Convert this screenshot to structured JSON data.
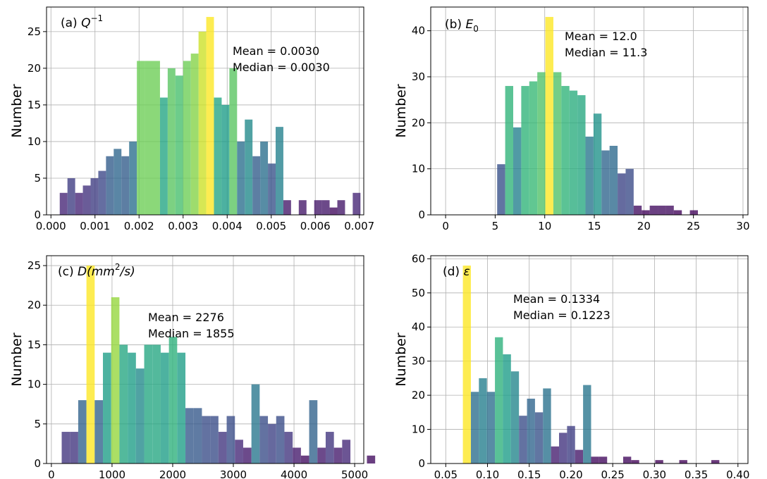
{
  "figure": {
    "ylabel": "Number"
  },
  "chart_data": [
    {
      "type": "bar",
      "panel": "a",
      "title_prefix": "(a) ",
      "title_var": "Q",
      "title_sup": "−1",
      "xlabel": "",
      "ylabel": "Number",
      "xlim": [
        -0.0001,
        0.0071
      ],
      "ylim": [
        0,
        28.35
      ],
      "xticks": [
        0.0,
        0.001,
        0.002,
        0.003,
        0.004,
        0.005,
        0.006,
        0.007
      ],
      "xtick_labels": [
        "0.000",
        "0.001",
        "0.002",
        "0.003",
        "0.004",
        "0.005",
        "0.006",
        "0.007"
      ],
      "yticks": [
        0,
        5,
        10,
        15,
        20,
        25
      ],
      "ytick_labels": [
        "0",
        "5",
        "10",
        "15",
        "20",
        "25"
      ],
      "bin_start": 0.0002,
      "bin_width": 0.000175,
      "values": [
        3,
        5,
        3,
        4,
        5,
        6,
        8,
        9,
        8,
        10,
        21,
        21,
        21,
        16,
        20,
        19,
        21,
        22,
        25,
        27,
        16,
        15,
        20,
        10,
        13,
        8,
        10,
        7,
        12,
        2,
        0,
        2,
        0,
        2,
        2,
        1,
        2,
        0,
        3
      ],
      "grid": true,
      "annotations": [
        "Mean = 0.0030",
        "Median = 0.0030"
      ]
    },
    {
      "type": "bar",
      "panel": "b",
      "title_prefix": "(b) ",
      "title_var": "E",
      "title_sub": "0",
      "xlabel": "",
      "ylabel": "Number",
      "xlim": [
        -1.5,
        30.5
      ],
      "ylim": [
        0,
        45.15
      ],
      "xticks": [
        0,
        5,
        10,
        15,
        20,
        25,
        30
      ],
      "xtick_labels": [
        "0",
        "5",
        "10",
        "15",
        "20",
        "25",
        "30"
      ],
      "yticks": [
        0,
        10,
        20,
        30,
        40
      ],
      "ytick_labels": [
        "0",
        "10",
        "20",
        "30",
        "40"
      ],
      "bin_start": 5.2,
      "bin_width": 0.81,
      "values": [
        11,
        28,
        19,
        28,
        29,
        31,
        43,
        31,
        28,
        27,
        26,
        17,
        22,
        14,
        15,
        9,
        10,
        2,
        1,
        2,
        2,
        2,
        1,
        0,
        1
      ],
      "grid": true,
      "annotations": [
        "Mean = 12.0",
        "Median = 11.3"
      ]
    },
    {
      "type": "bar",
      "panel": "c",
      "title_prefix": "(c) ",
      "title_var": "D",
      "title_unit": "(mm",
      "title_unit_sup": "2",
      "title_unit_end": "/s)",
      "xlabel": "",
      "ylabel": "Number",
      "xlim": [
        -80,
        5150
      ],
      "ylim": [
        0,
        26.25
      ],
      "xticks": [
        0,
        1000,
        2000,
        3000,
        4000,
        5000
      ],
      "xtick_labels": [
        "0",
        "1000",
        "2000",
        "3000",
        "4000",
        "5000"
      ],
      "yticks": [
        0,
        5,
        10,
        15,
        20,
        25
      ],
      "ytick_labels": [
        "0",
        "5",
        "10",
        "15",
        "20",
        "25"
      ],
      "bin_start": 170,
      "bin_width": 136,
      "values": [
        4,
        4,
        8,
        25,
        8,
        14,
        21,
        15,
        14,
        12,
        15,
        15,
        14,
        16,
        14,
        7,
        7,
        6,
        6,
        4,
        6,
        3,
        2,
        10,
        6,
        5,
        6,
        4,
        2,
        1,
        8,
        2,
        4,
        2,
        3,
        0,
        0,
        1
      ],
      "grid": true,
      "annotations": [
        "Mean = 2276",
        "Median = 1855"
      ]
    },
    {
      "type": "bar",
      "panel": "d",
      "title_prefix": "(d) ",
      "title_var": "ε",
      "xlabel": "",
      "ylabel": "Number",
      "xlim": [
        0.032,
        0.412
      ],
      "ylim": [
        0,
        60.9
      ],
      "xticks": [
        0.05,
        0.1,
        0.15,
        0.2,
        0.25,
        0.3,
        0.35,
        0.4
      ],
      "xtick_labels": [
        "0.05",
        "0.10",
        "0.15",
        "0.20",
        "0.25",
        "0.30",
        "0.35",
        "0.40"
      ],
      "yticks": [
        0,
        10,
        20,
        30,
        40,
        50,
        60
      ],
      "ytick_labels": [
        "0",
        "10",
        "20",
        "30",
        "40",
        "50",
        "60"
      ],
      "bin_start": 0.0705,
      "bin_width": 0.0096,
      "values": [
        58,
        21,
        25,
        21,
        37,
        32,
        27,
        14,
        19,
        15,
        22,
        5,
        9,
        11,
        4,
        23,
        2,
        2,
        0,
        0,
        2,
        1,
        0,
        0,
        1,
        0,
        0,
        1,
        0,
        0,
        0,
        1
      ],
      "grid": true,
      "annotations": [
        "Mean = 0.1334",
        "Median = 0.1223"
      ]
    }
  ]
}
